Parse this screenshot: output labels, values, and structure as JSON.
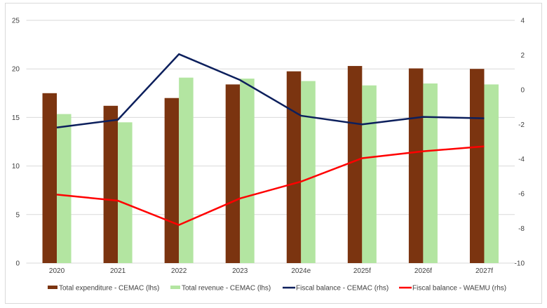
{
  "chart_data": {
    "type": "bar",
    "categories": [
      "2020",
      "2021",
      "2022",
      "2023",
      "2024e",
      "2025f",
      "2026f",
      "2027f"
    ],
    "series": [
      {
        "name": "Total expenditure - CEMAC (lhs)",
        "kind": "bar",
        "axis": "left",
        "color": "#7b3410",
        "values": [
          17.5,
          16.2,
          17.0,
          18.4,
          19.75,
          20.3,
          20.05,
          20.0
        ]
      },
      {
        "name": "Total revenue - CEMAC (lhs)",
        "kind": "bar",
        "axis": "left",
        "color": "#b3e5a1",
        "values": [
          15.35,
          14.5,
          19.1,
          19.0,
          18.75,
          18.3,
          18.5,
          18.4
        ]
      },
      {
        "name": "Fiscal balance - CEMAC (rhs)",
        "kind": "line",
        "axis": "right",
        "color": "#0c1f5c",
        "values": [
          -2.18,
          -1.73,
          2.05,
          0.56,
          -1.5,
          -2.0,
          -1.57,
          -1.65
        ]
      },
      {
        "name": "Fiscal balance - WAEMU (rhs)",
        "kind": "line",
        "axis": "right",
        "color": "#ff0000",
        "values": [
          -6.05,
          -6.4,
          -7.8,
          -6.27,
          -5.3,
          -3.95,
          -3.55,
          -3.27
        ]
      }
    ],
    "left_axis": {
      "range": [
        0,
        25
      ],
      "ticks": [
        0,
        5,
        10,
        15,
        20,
        25
      ]
    },
    "right_axis": {
      "range": [
        -10,
        4
      ],
      "ticks": [
        -10,
        -8,
        -6,
        -4,
        -2,
        0,
        2,
        4
      ]
    },
    "grid": true,
    "legend": "bottom"
  }
}
